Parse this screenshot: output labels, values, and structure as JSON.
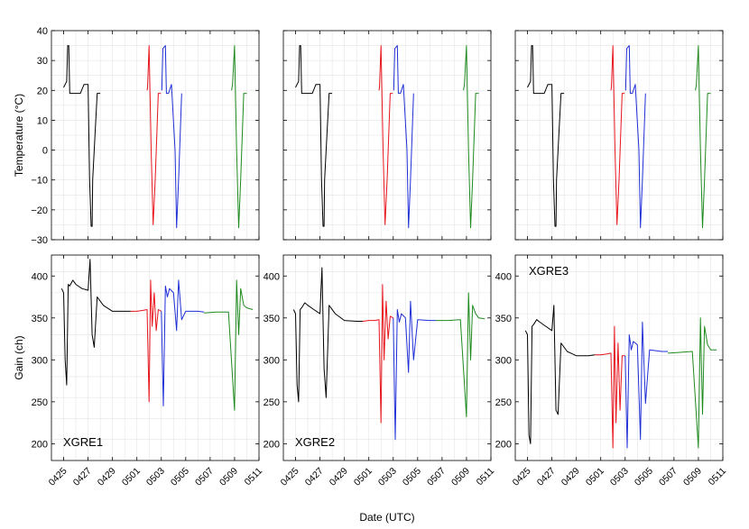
{
  "figure": {
    "xlabel": "Date (UTC)",
    "ylabel_top": "Temperature (°C)",
    "ylabel_bottom": "Gain (ch)"
  },
  "colors": {
    "black": "#000000",
    "red": "#e8141c",
    "blue": "#1f2fd6",
    "green": "#1e8a1e",
    "grid": "#e4e4e4"
  },
  "chart_data": [
    {
      "type": "line",
      "panel": "temperature",
      "detectors": [
        "XGRE1",
        "XGRE2",
        "XGRE3"
      ],
      "xlabel": "Date (UTC)",
      "ylabel": "Temperature (°C)",
      "x_ticks": [
        "0425",
        "0427",
        "0429",
        "0501",
        "0503",
        "0505",
        "0507",
        "0509",
        "0511"
      ],
      "xlim": [
        "04-24",
        "05-11"
      ],
      "ylim": [
        -30,
        40
      ],
      "y_ticks": [
        -30,
        -20,
        -10,
        0,
        10,
        20,
        30,
        40
      ],
      "grid": true,
      "series": [
        {
          "color": "black",
          "x": [
            "04-25 00:00",
            "04-25 06:00",
            "04-25 08:00",
            "04-25 10:00",
            "04-25 12:00",
            "04-25 16:00",
            "04-26 00:00",
            "04-26 06:00",
            "04-26 09:00",
            "04-26 16:00",
            "04-27 00:00",
            "04-27 03:00",
            "04-27 06:00",
            "04-27 08:00",
            "04-27 09:00",
            "04-27 12:00",
            "04-27 18:00",
            "04-28 00:00"
          ],
          "y": [
            21,
            23,
            35,
            35,
            19,
            19,
            19,
            19,
            19,
            22,
            22,
            -10,
            -25.5,
            -25.5,
            -10,
            0,
            19,
            19
          ]
        },
        {
          "color": "red",
          "x": [
            "05-01 20:00",
            "05-01 21:00",
            "05-02 00:00",
            "05-02 04:00",
            "05-02 08:00",
            "05-02 12:00",
            "05-02 18:00",
            "05-02 23:00"
          ],
          "y": [
            20,
            21,
            35,
            0,
            -25,
            -10,
            19,
            19
          ]
        },
        {
          "color": "blue",
          "x": [
            "05-03 01:00",
            "05-03 03:00",
            "05-03 08:00",
            "05-03 10:00",
            "05-03 14:00",
            "05-03 20:00",
            "05-04 03:00",
            "05-04 06:00",
            "05-04 10:00",
            "05-04 16:00"
          ],
          "y": [
            20,
            34,
            35,
            19,
            19,
            22,
            0,
            -26,
            -10,
            19
          ]
        },
        {
          "color": "green",
          "x": [
            "05-08 18:00",
            "05-08 20:00",
            "05-09 00:00",
            "05-09 04:00",
            "05-09 08:00",
            "05-09 12:00",
            "05-09 18:00",
            "05-10 00:00"
          ],
          "y": [
            20,
            22,
            35,
            0,
            -26,
            -10,
            19,
            19
          ]
        }
      ]
    },
    {
      "type": "line",
      "panel": "gain",
      "detectors": [
        {
          "label": "XGRE1",
          "ylim": [
            180,
            425
          ],
          "y_ticks": [
            200,
            250,
            300,
            350,
            400
          ]
        },
        {
          "label": "XGRE2",
          "ylim": [
            180,
            425
          ],
          "y_ticks": [
            200,
            250,
            300,
            350,
            400
          ]
        },
        {
          "label": "XGRE3",
          "ylim": [
            180,
            425
          ],
          "y_ticks": [
            200,
            250,
            300,
            350,
            400
          ]
        }
      ],
      "xlabel": "Date (UTC)",
      "ylabel": "Gain (ch)",
      "x_ticks": [
        "0425",
        "0427",
        "0429",
        "0501",
        "0503",
        "0505",
        "0507",
        "0509",
        "0511"
      ],
      "xlim": [
        "04-24",
        "05-11"
      ],
      "grid": true,
      "series_by_detector": [
        [
          {
            "color": "black",
            "x": [
              "04-24 20:00",
              "04-25 00:00",
              "04-25 03:00",
              "04-25 06:00",
              "04-25 09:00",
              "04-25 12:00",
              "04-25 18:00",
              "04-26 00:00",
              "04-26 12:00",
              "04-27 00:00",
              "04-27 04:00",
              "04-27 08:00",
              "04-27 12:00",
              "04-27 18:00",
              "04-28 06:00",
              "04-29 00:00",
              "04-30 00:00",
              "04-30 12:00"
            ],
            "y": [
              385,
              380,
              300,
              270,
              390,
              388,
              395,
              390,
              385,
              383,
              420,
              330,
              315,
              375,
              365,
              358,
              358,
              358
            ]
          },
          {
            "color": "red",
            "x": [
              "04-30 12:00",
              "05-01 00:00",
              "05-01 12:00",
              "05-01 20:00",
              "05-02 00:00",
              "05-02 03:00",
              "05-02 06:00",
              "05-02 10:00",
              "05-02 14:00",
              "05-02 18:00",
              "05-03 00:00"
            ],
            "y": [
              358,
              358,
              359,
              360,
              250,
              395,
              340,
              380,
              335,
              360,
              358
            ]
          },
          {
            "color": "blue",
            "x": [
              "05-03 00:00",
              "05-03 04:00",
              "05-03 08:00",
              "05-03 12:00",
              "05-03 16:00",
              "05-04 00:00",
              "05-04 06:00",
              "05-04 10:00",
              "05-04 16:00",
              "05-05 00:00",
              "05-06 00:00",
              "05-06 12:00"
            ],
            "y": [
              358,
              245,
              388,
              375,
              385,
              380,
              335,
              395,
              348,
              358,
              358,
              357
            ]
          },
          {
            "color": "green",
            "x": [
              "05-06 12:00",
              "05-07 12:00",
              "05-08 12:00",
              "05-09 00:00",
              "05-09 04:00",
              "05-09 08:00",
              "05-09 12:00",
              "05-09 18:00",
              "05-10 00:00",
              "05-10 12:00"
            ],
            "y": [
              356,
              357,
              357,
              240,
              395,
              330,
              385,
              365,
              362,
              360
            ]
          }
        ],
        [
          {
            "color": "black",
            "x": [
              "04-24 20:00",
              "04-25 00:00",
              "04-25 03:00",
              "04-25 06:00",
              "04-25 09:00",
              "04-25 12:00",
              "04-25 18:00",
              "04-26 00:00",
              "04-26 12:00",
              "04-27 00:00",
              "04-27 04:00",
              "04-27 08:00",
              "04-27 12:00",
              "04-27 18:00",
              "04-28 06:00",
              "04-29 00:00",
              "04-30 00:00",
              "04-30 12:00"
            ],
            "y": [
              360,
              355,
              270,
              250,
              360,
              362,
              368,
              365,
              360,
              355,
              410,
              290,
              255,
              365,
              355,
              347,
              346,
              346
            ]
          },
          {
            "color": "red",
            "x": [
              "04-30 12:00",
              "05-01 00:00",
              "05-01 12:00",
              "05-01 20:00",
              "05-02 00:00",
              "05-02 03:00",
              "05-02 06:00",
              "05-02 10:00",
              "05-02 14:00",
              "05-02 18:00",
              "05-03 00:00"
            ],
            "y": [
              346,
              347,
              347,
              348,
              225,
              390,
              300,
              370,
              325,
              352,
              350
            ]
          },
          {
            "color": "blue",
            "x": [
              "05-03 00:00",
              "05-03 04:00",
              "05-03 08:00",
              "05-03 12:00",
              "05-03 16:00",
              "05-04 00:00",
              "05-04 06:00",
              "05-04 10:00",
              "05-04 16:00",
              "05-05 00:00",
              "05-06 00:00",
              "05-06 12:00"
            ],
            "y": [
              350,
              205,
              360,
              345,
              355,
              350,
              285,
              370,
              300,
              348,
              347,
              347
            ]
          },
          {
            "color": "green",
            "x": [
              "05-06 12:00",
              "05-07 12:00",
              "05-08 12:00",
              "05-09 00:00",
              "05-09 04:00",
              "05-09 08:00",
              "05-09 12:00",
              "05-09 18:00",
              "05-10 00:00",
              "05-10 12:00"
            ],
            "y": [
              347,
              347,
              348,
              232,
              380,
              300,
              365,
              355,
              350,
              349
            ]
          }
        ],
        [
          {
            "color": "black",
            "x": [
              "04-24 20:00",
              "04-25 00:00",
              "04-25 03:00",
              "04-25 06:00",
              "04-25 09:00",
              "04-25 12:00",
              "04-25 18:00",
              "04-26 00:00",
              "04-26 12:00",
              "04-27 00:00",
              "04-27 04:00",
              "04-27 08:00",
              "04-27 12:00",
              "04-27 18:00",
              "04-28 06:00",
              "04-29 00:00",
              "04-30 00:00",
              "04-30 12:00"
            ],
            "y": [
              335,
              330,
              210,
              200,
              340,
              342,
              348,
              345,
              340,
              335,
              365,
              240,
              235,
              320,
              310,
              305,
              305,
              306
            ]
          },
          {
            "color": "red",
            "x": [
              "04-30 12:00",
              "05-01 00:00",
              "05-01 12:00",
              "05-01 20:00",
              "05-02 00:00",
              "05-02 03:00",
              "05-02 06:00",
              "05-02 10:00",
              "05-02 14:00",
              "05-02 18:00",
              "05-03 00:00"
            ],
            "y": [
              306,
              306,
              307,
              308,
              195,
              340,
              225,
              320,
              240,
              305,
              305
            ]
          },
          {
            "color": "blue",
            "x": [
              "05-03 00:00",
              "05-03 04:00",
              "05-03 08:00",
              "05-03 12:00",
              "05-03 16:00",
              "05-04 00:00",
              "05-04 06:00",
              "05-04 10:00",
              "05-04 16:00",
              "05-05 00:00",
              "05-06 00:00",
              "05-06 12:00"
            ],
            "y": [
              305,
              195,
              330,
              312,
              322,
              318,
              205,
              345,
              248,
              312,
              310,
              310
            ]
          },
          {
            "color": "green",
            "x": [
              "05-06 12:00",
              "05-07 12:00",
              "05-08 12:00",
              "05-09 00:00",
              "05-09 04:00",
              "05-09 08:00",
              "05-09 12:00",
              "05-09 18:00",
              "05-10 00:00",
              "05-10 12:00"
            ],
            "y": [
              308,
              309,
              310,
              195,
              350,
              235,
              340,
              318,
              312,
              312
            ]
          }
        ]
      ]
    }
  ]
}
